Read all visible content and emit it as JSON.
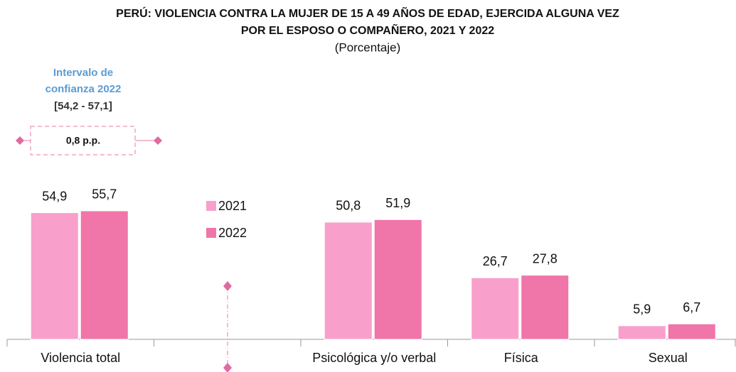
{
  "chart_data": {
    "type": "bar",
    "title": [
      "PERÚ: VIOLENCIA CONTRA LA MUJER DE 15 A 49 AÑOS DE EDAD, EJERCIDA ALGUNA VEZ",
      "POR EL ESPOSO O COMPAÑERO, 2021 Y 2022"
    ],
    "subtitle": "(Porcentaje)",
    "categories": [
      "Violencia total",
      null,
      "Psicológica y/o verbal",
      "Física",
      "Sexual"
    ],
    "series": [
      {
        "name": "2021",
        "color": "#f99fcb",
        "values": [
          54.9,
          null,
          50.8,
          26.7,
          5.9
        ],
        "value_labels": [
          "54,9",
          null,
          "50,8",
          "26,7",
          "5,9"
        ]
      },
      {
        "name": "2022",
        "color": "#f075a9",
        "values": [
          55.7,
          null,
          51.9,
          27.8,
          6.7
        ],
        "value_labels": [
          "55,7",
          null,
          "51,9",
          "27,8",
          "6,7"
        ]
      }
    ],
    "ylim": [
      0,
      60
    ],
    "annotation": {
      "title": [
        "Intervalo de",
        "confianza 2022"
      ],
      "interval": "[54,2 - 57,1]",
      "difference": "0,8 p.p."
    }
  }
}
